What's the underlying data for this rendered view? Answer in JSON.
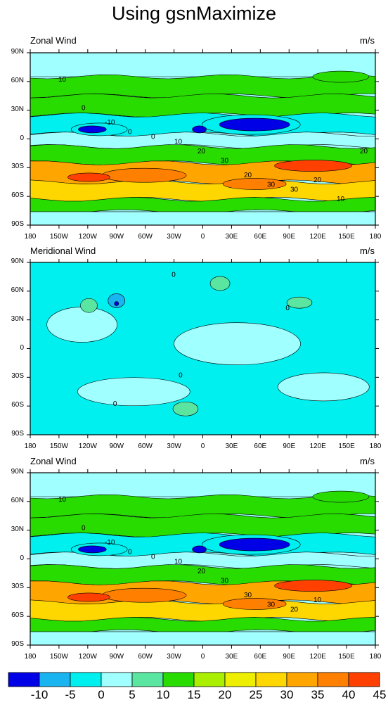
{
  "title": "Using gsnMaximize",
  "colors": [
    "#0000e6",
    "#1ab4f0",
    "#00f0f0",
    "#a0ffff",
    "#5ae6a0",
    "#28dc00",
    "#aaee00",
    "#eeee00",
    "#ffd700",
    "#ffa500",
    "#ff7f00",
    "#ff4000"
  ],
  "panels": [
    {
      "left": "Zonal Wind",
      "right": "m/s"
    },
    {
      "left": "Meridional Wind",
      "right": "m/s"
    },
    {
      "left": "Zonal Wind",
      "right": "m/s"
    }
  ],
  "lat_labels": [
    "90N",
    "60N",
    "30N",
    "0",
    "30S",
    "60S",
    "90S"
  ],
  "lon_labels": [
    "180",
    "150W",
    "120W",
    "90W",
    "60W",
    "30W",
    "0",
    "30E",
    "60E",
    "90E",
    "120E",
    "150E",
    "180"
  ],
  "labelbar": [
    "-10",
    "-5",
    "0",
    "5",
    "10",
    "15",
    "20",
    "25",
    "30",
    "35",
    "40",
    "45"
  ],
  "chart_data": [
    {
      "type": "heatmap",
      "title": "Zonal Wind",
      "units": "m/s",
      "x": "longitude 180W to 180E",
      "y": "latitude 90S to 90N",
      "contour_labels": [
        "10",
        "0",
        "-10",
        "0",
        "0",
        "10",
        "20",
        "30",
        "20",
        "30",
        "30",
        "20",
        "10",
        "20"
      ],
      "lat_bands": [
        {
          "lat": 75,
          "value": 2
        },
        {
          "lat": 55,
          "value": 12
        },
        {
          "lat": 35,
          "value": 10
        },
        {
          "lat": 15,
          "value": -5
        },
        {
          "lat": 0,
          "value": 4
        },
        {
          "lat": -15,
          "value": 14
        },
        {
          "lat": -35,
          "value": 30
        },
        {
          "lat": -55,
          "value": 25
        },
        {
          "lat": -70,
          "value": 10
        },
        {
          "lat": -82,
          "value": 0
        }
      ]
    },
    {
      "type": "heatmap",
      "title": "Meridional Wind",
      "units": "m/s",
      "x": "longitude 180W to 180E",
      "y": "latitude 90S to 90N",
      "contour_labels": [
        "0",
        "0",
        "0",
        "0"
      ],
      "lat_bands": [
        {
          "lat": 60,
          "value": 0
        },
        {
          "lat": 0,
          "value": 1
        },
        {
          "lat": -60,
          "value": 0
        }
      ]
    },
    {
      "type": "heatmap",
      "title": "Zonal Wind",
      "units": "m/s",
      "x": "longitude 180W to 180E",
      "y": "latitude 90S to 90N",
      "contour_labels": [
        "10",
        "0",
        "-10",
        "0",
        "0",
        "10",
        "20",
        "30",
        "30",
        "30",
        "20",
        "10"
      ],
      "lat_bands": [
        {
          "lat": 75,
          "value": 2
        },
        {
          "lat": 55,
          "value": 12
        },
        {
          "lat": 35,
          "value": 10
        },
        {
          "lat": 15,
          "value": -5
        },
        {
          "lat": 0,
          "value": 4
        },
        {
          "lat": -15,
          "value": 14
        },
        {
          "lat": -35,
          "value": 30
        },
        {
          "lat": -55,
          "value": 25
        },
        {
          "lat": -70,
          "value": 10
        },
        {
          "lat": -82,
          "value": 0
        }
      ]
    }
  ]
}
